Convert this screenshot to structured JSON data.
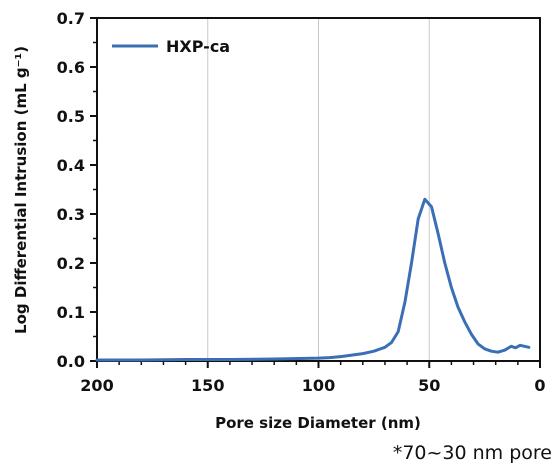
{
  "chart_data": {
    "type": "line",
    "title": "",
    "xlabel": "Pore size Diameter (nm)",
    "ylabel": "Log Differential Intrusion (mL g⁻¹)",
    "xlim": [
      200,
      0
    ],
    "ylim": [
      0,
      0.7
    ],
    "x_reversed": true,
    "xticks": [
      200,
      150,
      100,
      50,
      0
    ],
    "xtick_labels": [
      "200",
      "150",
      "100",
      "50",
      "0"
    ],
    "yticks": [
      0.0,
      0.1,
      0.2,
      0.3,
      0.4,
      0.5,
      0.6,
      0.7
    ],
    "ytick_labels": [
      "0.0",
      "0.1",
      "0.2",
      "0.3",
      "0.4",
      "0.5",
      "0.6",
      "0.7"
    ],
    "grid": true,
    "legend_position": "top-left",
    "series": [
      {
        "name": "HXP-ca",
        "color": "#3a6fb6",
        "x": [
          200,
          180,
          160,
          140,
          120,
          100,
          95,
          90,
          85,
          80,
          75,
          70,
          67,
          64,
          61,
          58,
          55,
          52,
          49,
          46,
          43,
          40,
          37,
          34,
          31,
          28,
          25,
          22,
          19,
          16,
          13,
          11,
          9,
          7,
          5
        ],
        "y": [
          0.002,
          0.002,
          0.003,
          0.003,
          0.004,
          0.006,
          0.007,
          0.009,
          0.012,
          0.015,
          0.02,
          0.028,
          0.038,
          0.06,
          0.12,
          0.2,
          0.29,
          0.33,
          0.315,
          0.26,
          0.2,
          0.15,
          0.11,
          0.08,
          0.055,
          0.035,
          0.025,
          0.02,
          0.018,
          0.022,
          0.03,
          0.027,
          0.032,
          0.03,
          0.028
        ]
      }
    ]
  },
  "note": "*70~30 nm pore"
}
